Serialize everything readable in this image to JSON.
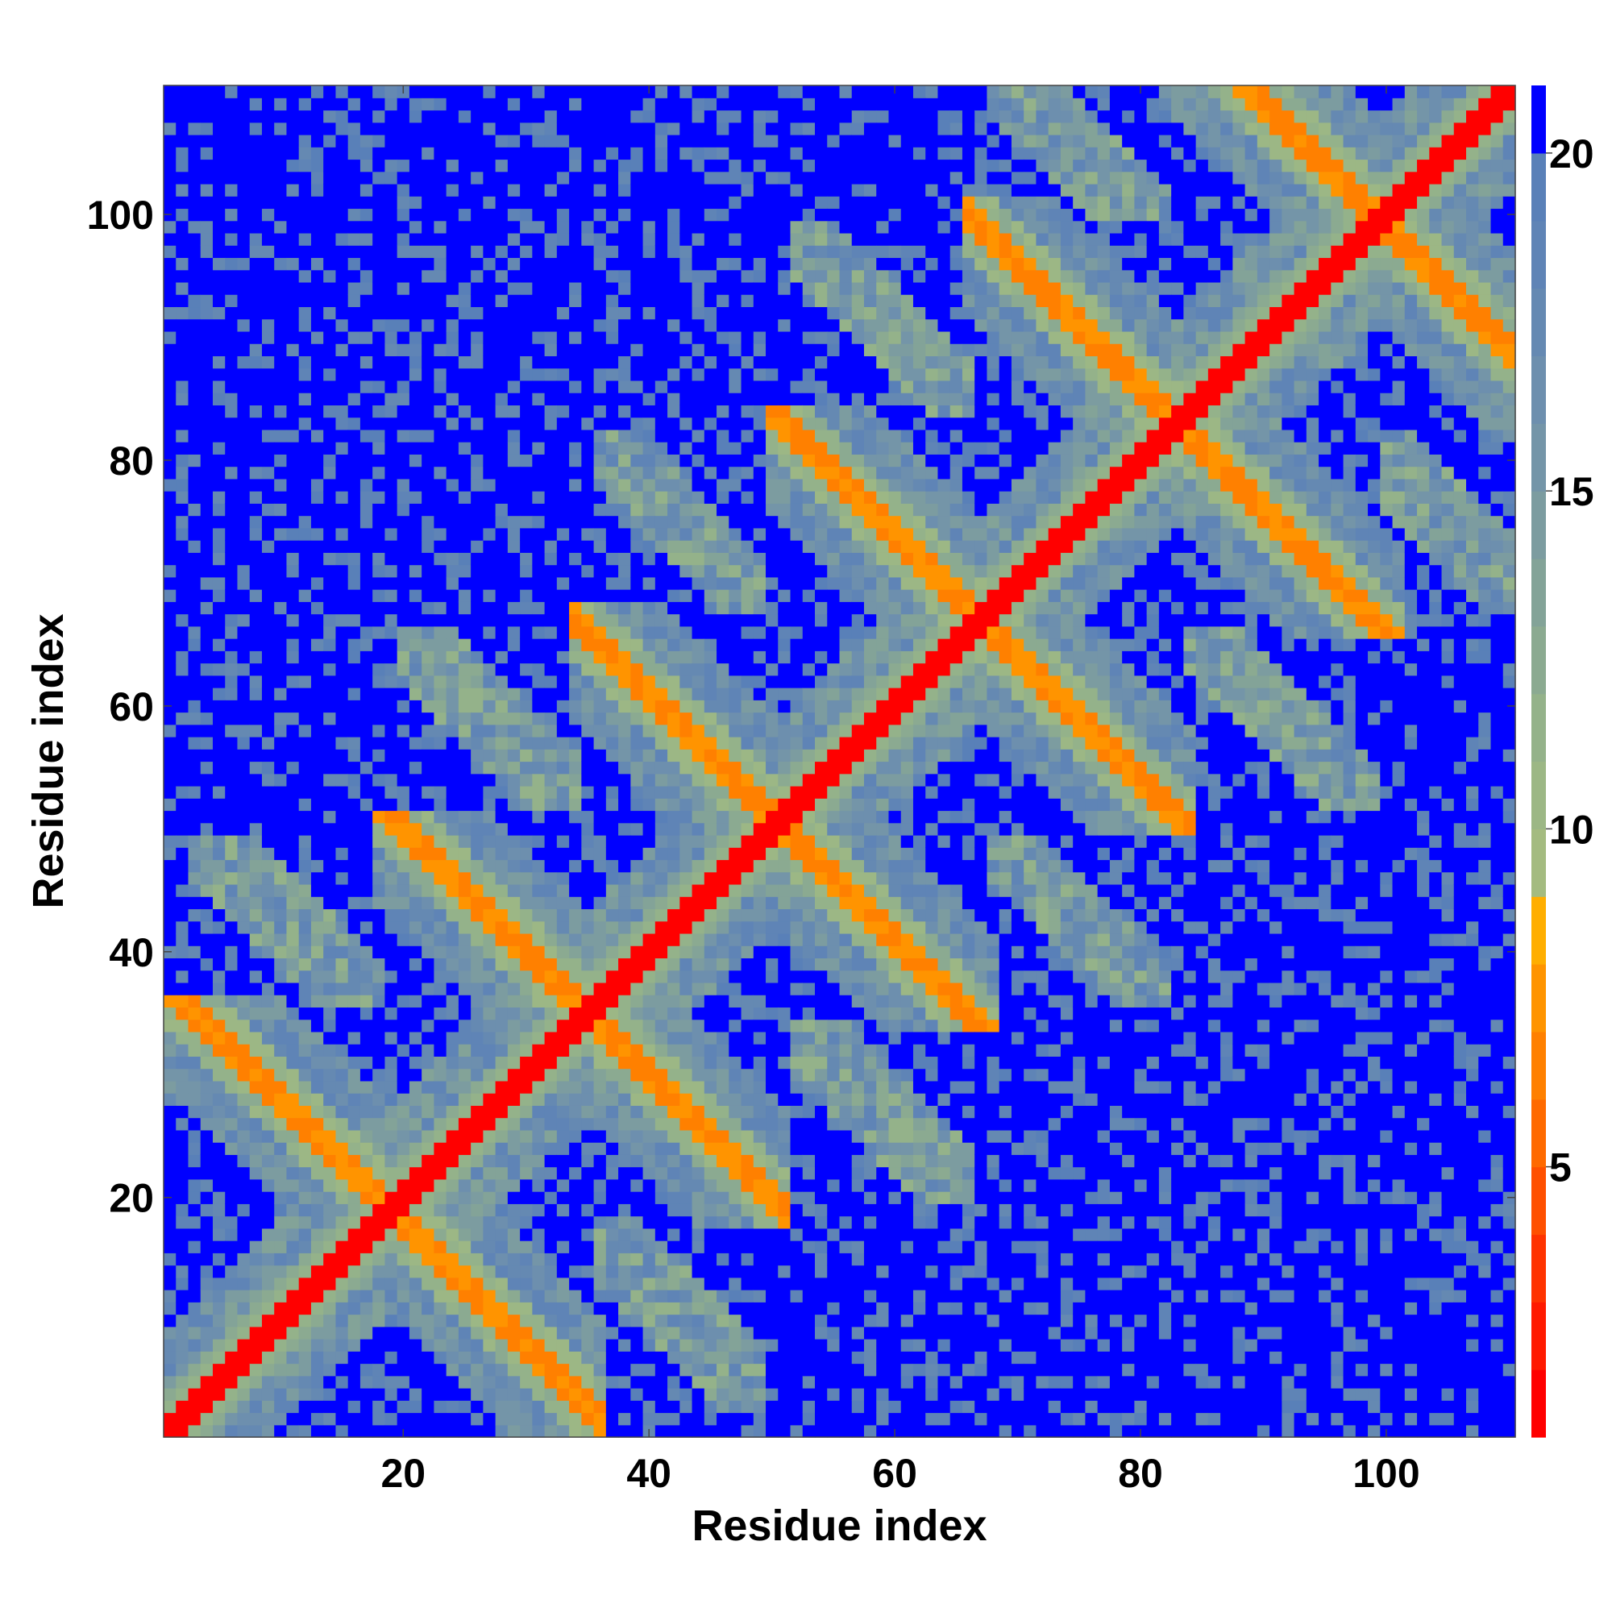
{
  "chart_data": {
    "type": "heatmap",
    "title": "",
    "xlabel": "Residue index",
    "ylabel": "Residue index",
    "n_residues": 110,
    "xlim": [
      1,
      110
    ],
    "ylim": [
      1,
      110
    ],
    "x_ticks": [
      20,
      40,
      60,
      80,
      100
    ],
    "y_ticks": [
      20,
      40,
      60,
      80,
      100
    ],
    "colorbar": {
      "ticks": [
        5,
        10,
        15,
        20
      ],
      "range": [
        1,
        21
      ],
      "palette": [
        {
          "max": 2,
          "color": "#ff0000"
        },
        {
          "max": 3,
          "color": "#ff1a00"
        },
        {
          "max": 4,
          "color": "#ff3300"
        },
        {
          "max": 5,
          "color": "#ff5000"
        },
        {
          "max": 6,
          "color": "#ff6a00"
        },
        {
          "max": 7,
          "color": "#ff8000"
        },
        {
          "max": 8,
          "color": "#ff9400"
        },
        {
          "max": 9,
          "color": "#ffae00"
        },
        {
          "max": 10,
          "color": "#a4bb80"
        },
        {
          "max": 11,
          "color": "#9cb785"
        },
        {
          "max": 12,
          "color": "#94b28a"
        },
        {
          "max": 13,
          "color": "#8baa91"
        },
        {
          "max": 14,
          "color": "#83a398"
        },
        {
          "max": 15,
          "color": "#7c9ca0"
        },
        {
          "max": 16,
          "color": "#7495a8"
        },
        {
          "max": 17,
          "color": "#6d8fae"
        },
        {
          "max": 18,
          "color": "#6589b2"
        },
        {
          "max": 19,
          "color": "#5f84b6"
        },
        {
          "max": 20,
          "color": "#5980b8"
        },
        {
          "max": 21,
          "color": "#0000ff"
        }
      ]
    },
    "description_of_values": "Symmetric residue-residue distance map; diagonal ~1, helix-helix crossing contacts 4-8, intermediate 9-19, far contacts >=20 (blue)",
    "helix_segments": [
      [
        3,
        18
      ],
      [
        20,
        34
      ],
      [
        36,
        49
      ],
      [
        52,
        66
      ],
      [
        68,
        82
      ],
      [
        84,
        99
      ],
      [
        100,
        110
      ]
    ]
  }
}
